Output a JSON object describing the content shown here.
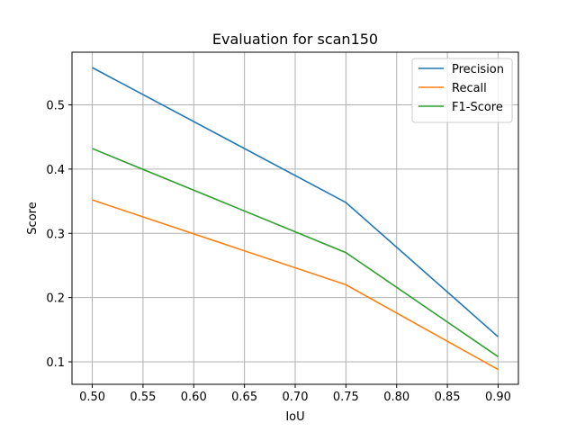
{
  "chart_data": {
    "type": "line",
    "title": "Evaluation for scan150",
    "xlabel": "IoU",
    "ylabel": "Score",
    "x": [
      0.5,
      0.75,
      0.9
    ],
    "xlim": [
      0.48,
      0.92
    ],
    "ylim": [
      0.065,
      0.582
    ],
    "xticks": [
      0.5,
      0.55,
      0.6,
      0.65,
      0.7,
      0.75,
      0.8,
      0.85,
      0.9
    ],
    "xtick_labels": [
      "0.50",
      "0.55",
      "0.60",
      "0.65",
      "0.70",
      "0.75",
      "0.80",
      "0.85",
      "0.90"
    ],
    "yticks": [
      0.1,
      0.2,
      0.3,
      0.4,
      0.5
    ],
    "ytick_labels": [
      "0.1",
      "0.2",
      "0.3",
      "0.4",
      "0.5"
    ],
    "grid": true,
    "legend_position": "top-right",
    "series": [
      {
        "name": "Precision",
        "color": "#1f77b4",
        "values": [
          0.558,
          0.348,
          0.139
        ]
      },
      {
        "name": "Recall",
        "color": "#ff7f0e",
        "values": [
          0.352,
          0.22,
          0.088
        ]
      },
      {
        "name": "F1-Score",
        "color": "#2ca02c",
        "values": [
          0.432,
          0.27,
          0.108
        ]
      }
    ]
  }
}
